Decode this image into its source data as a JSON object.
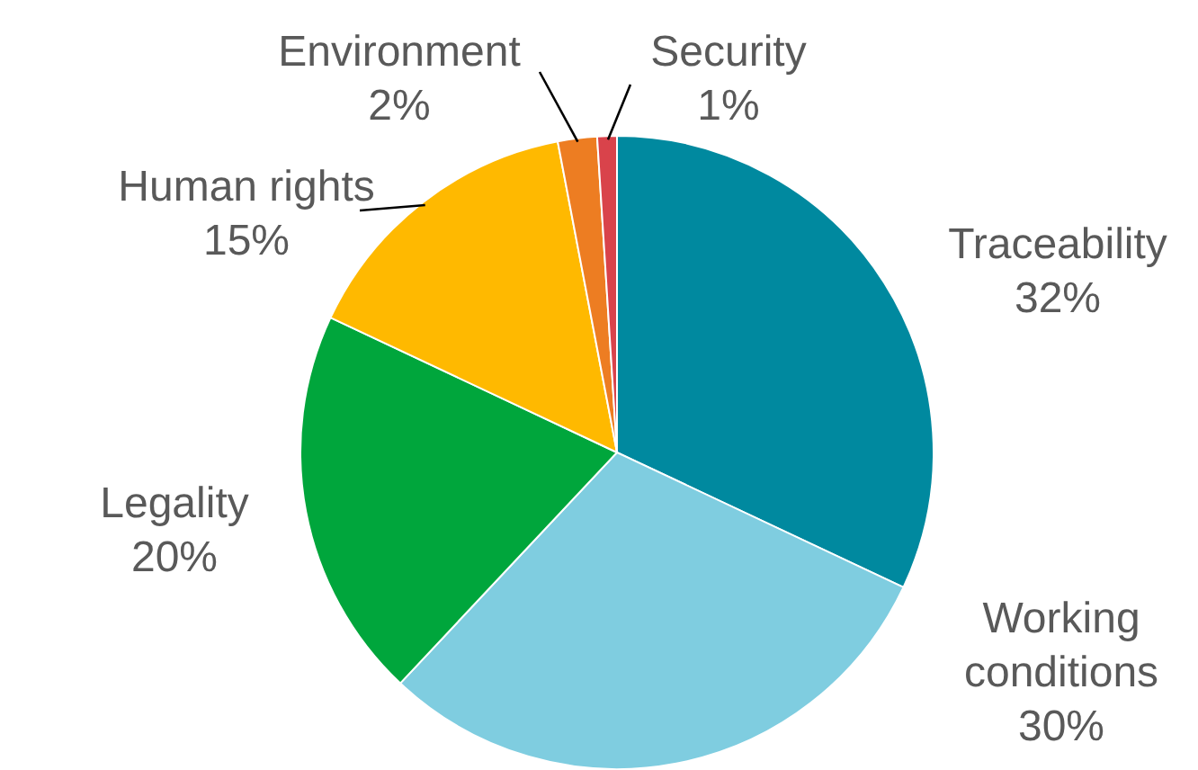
{
  "chart_data": {
    "type": "pie",
    "categories": [
      "Traceability",
      "Working conditions",
      "Legality",
      "Human rights",
      "Environment",
      "Security"
    ],
    "values": [
      32,
      30,
      20,
      15,
      2,
      1
    ],
    "value_labels": [
      "32%",
      "30%",
      "20%",
      "15%",
      "2%",
      "1%"
    ],
    "colors": [
      "#00899f",
      "#7fcde0",
      "#00a63c",
      "#ffb900",
      "#ed7d22",
      "#d9434b"
    ],
    "legend": false
  }
}
